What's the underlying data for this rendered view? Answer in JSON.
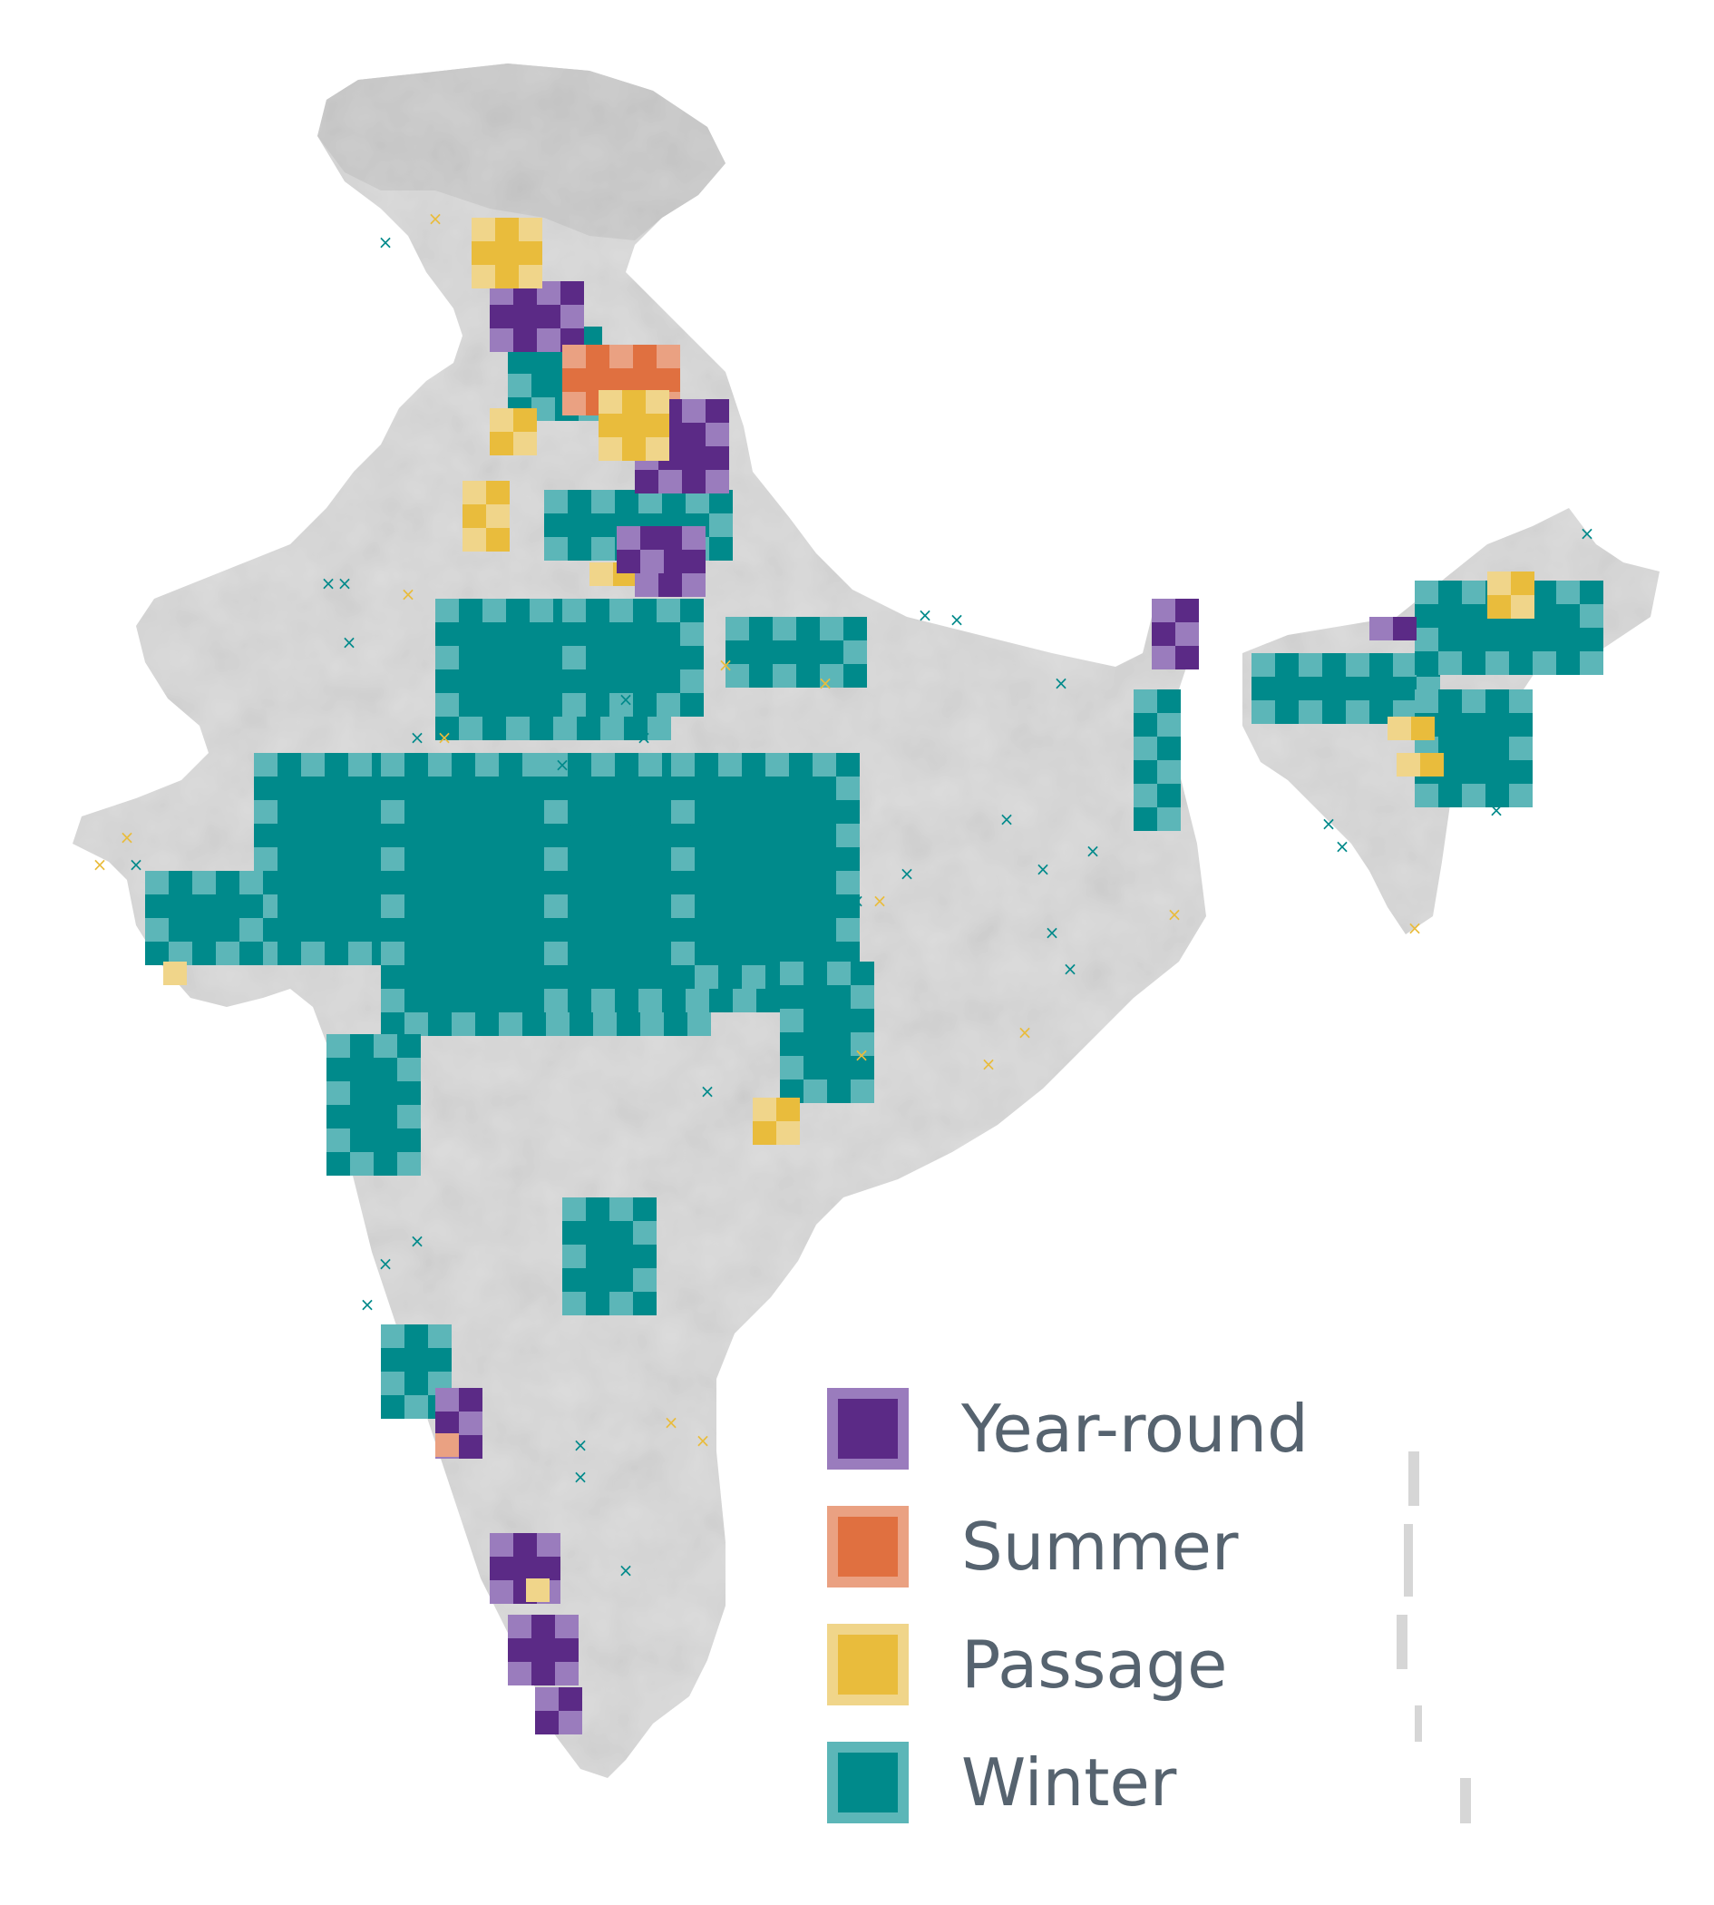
{
  "colors": {
    "year_round": {
      "fill": "#5b2a86",
      "light": "#9a7cbd"
    },
    "summer": {
      "fill": "#e07040",
      "light": "#eaa182"
    },
    "passage": {
      "fill": "#e9bc3c",
      "light": "#f0d58a"
    },
    "winter": {
      "fill": "#008a8b",
      "light": "#5cb6b8"
    },
    "land": "#dcdcdc",
    "land_high": "#cfcfcf",
    "boundary": "#ffffff",
    "legend_text": "#56636f"
  },
  "legend": [
    {
      "key": "year_round",
      "label": "Year-round"
    },
    {
      "key": "summer",
      "label": "Summer"
    },
    {
      "key": "passage",
      "label": "Passage"
    },
    {
      "key": "winter",
      "label": "Winter"
    }
  ]
}
